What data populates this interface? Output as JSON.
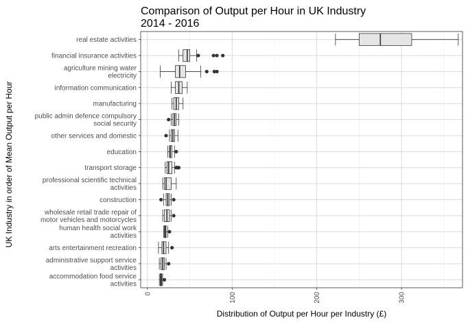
{
  "chart_data": {
    "type": "boxplot",
    "orientation": "horizontal",
    "title": "Comparison of Output per Hour in UK Industry",
    "subtitle": "2014 - 2016",
    "xlabel": "Distribution of Output per Hour per Industry (£)",
    "ylabel": "UK Industry in order of Mean Output per Hour",
    "xlim": [
      -8,
      372
    ],
    "x_ticks": [
      0,
      100,
      200,
      300
    ],
    "grid": true,
    "categories": [
      {
        "label": [
          "real estate activities"
        ],
        "min": 222,
        "q1": 250,
        "median": 275,
        "q3": 312,
        "max": 367,
        "outliers": []
      },
      {
        "label": [
          "financial insurance activities"
        ],
        "min": 37,
        "q1": 42,
        "median": 47,
        "q3": 50,
        "max": 58,
        "outliers": [
          60,
          78,
          82,
          89
        ]
      },
      {
        "label": [
          "agriculture mining water",
          "electricity"
        ],
        "min": 15,
        "q1": 33,
        "median": 38,
        "q3": 45,
        "max": 63,
        "outliers": [
          70,
          79,
          82
        ]
      },
      {
        "label": [
          "information communication"
        ],
        "min": 28,
        "q1": 33,
        "median": 37,
        "q3": 41,
        "max": 47,
        "outliers": []
      },
      {
        "label": [
          "manufacturing"
        ],
        "min": 29,
        "q1": 31,
        "median": 34,
        "q3": 37,
        "max": 42,
        "outliers": []
      },
      {
        "label": [
          "public admin defence compulsory",
          "social security"
        ],
        "min": 28,
        "q1": 30,
        "median": 32,
        "q3": 34,
        "max": 37,
        "outliers": [
          25
        ]
      },
      {
        "label": [
          "other services and domestic"
        ],
        "min": 26,
        "q1": 28,
        "median": 30,
        "q3": 32,
        "max": 36,
        "outliers": [
          22
        ]
      },
      {
        "label": [
          "education"
        ],
        "min": 24,
        "q1": 26,
        "median": 27,
        "q3": 29,
        "max": 32,
        "outliers": [
          34
        ]
      },
      {
        "label": [
          "transport storage"
        ],
        "min": 21,
        "q1": 23,
        "median": 25,
        "q3": 29,
        "max": 32,
        "outliers": [
          34,
          35,
          36,
          37
        ]
      },
      {
        "label": [
          "professional scientific technical",
          "activities"
        ],
        "min": 18,
        "q1": 20,
        "median": 22,
        "q3": 28,
        "max": 34,
        "outliers": []
      },
      {
        "label": [
          "construction"
        ],
        "min": 19,
        "q1": 22,
        "median": 24,
        "q3": 26,
        "max": 28,
        "outliers": [
          16,
          31
        ]
      },
      {
        "label": [
          "wholesale retail trade repair of",
          "motor vehicles and motorcycles"
        ],
        "min": 18,
        "q1": 20,
        "median": 23,
        "q3": 26,
        "max": 28,
        "outliers": [
          31
        ]
      },
      {
        "label": [
          "human health social work",
          "activities"
        ],
        "min": 19,
        "q1": 20,
        "median": 21,
        "q3": 22,
        "max": 24,
        "outliers": [
          26
        ]
      },
      {
        "label": [
          "arts entertainment recreation"
        ],
        "min": 13,
        "q1": 17,
        "median": 19,
        "q3": 22,
        "max": 25,
        "outliers": [
          29
        ]
      },
      {
        "label": [
          "administrative support service",
          "activities"
        ],
        "min": 14,
        "q1": 16,
        "median": 18,
        "q3": 20,
        "max": 22,
        "outliers": [
          25
        ]
      },
      {
        "label": [
          "accommodation food service",
          "activities"
        ],
        "min": 14,
        "q1": 15,
        "median": 16,
        "q3": 17,
        "max": 18,
        "outliers": [
          20
        ]
      }
    ]
  },
  "colors": {
    "box_fill": "#e5e5e5",
    "box_stroke": "#333333",
    "outlier": "#333333",
    "grid_major": "#d9d9d9",
    "grid_minor": "#ededed",
    "panel_border": "#333333"
  }
}
